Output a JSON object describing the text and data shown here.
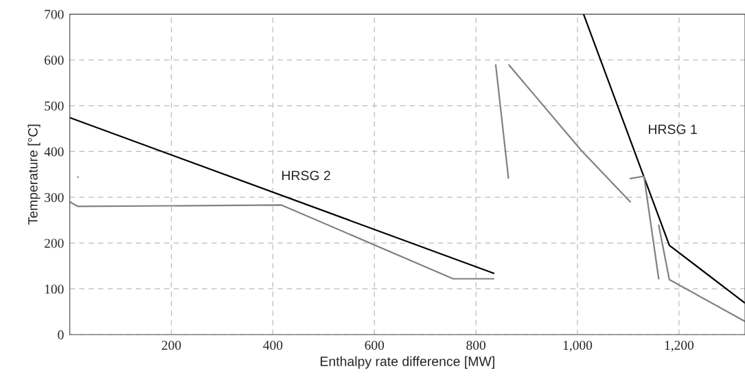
{
  "chart_data": {
    "type": "line",
    "xlabel": "Enthalpy rate difference [MW]",
    "ylabel": "Temperature [°C]",
    "xlim": [
      0,
      1330
    ],
    "ylim": [
      0,
      700
    ],
    "xticks": [
      200,
      400,
      600,
      800,
      {
        "value": 1000,
        "label": "1,000"
      },
      {
        "value": 1200,
        "label": "1,200"
      }
    ],
    "yticks": [
      0,
      100,
      200,
      300,
      400,
      500,
      600,
      700
    ],
    "grid": true,
    "line_style": "solid",
    "marker": "none",
    "series": [
      {
        "color": "#000000",
        "x": [
          0,
          835
        ],
        "values": [
          474,
          134
        ]
      },
      {
        "color": "#000000",
        "x": [
          1012,
          1181,
          1330
        ],
        "values": [
          700,
          195,
          69
        ]
      },
      {
        "color": "#808080",
        "x": [
          0,
          16,
          417,
          755,
          835
        ],
        "values": [
          290,
          280,
          283,
          122,
          122
        ]
      },
      {
        "type": "scatter",
        "color": "#808080",
        "x": [
          16
        ],
        "values": [
          344
        ]
      },
      {
        "color": "#808080",
        "x": [
          839,
          864
        ],
        "values": [
          589,
          342
        ]
      },
      {
        "color": "#808080",
        "x": [
          865,
          1007,
          1104
        ],
        "values": [
          589,
          403,
          290
        ]
      },
      {
        "color": "#808080",
        "x": [
          1104,
          1131,
          1160
        ],
        "values": [
          341,
          346,
          122
        ]
      },
      {
        "color": "#808080",
        "x": [
          1160,
          1181,
          1330
        ],
        "values": [
          239,
          120,
          29
        ]
      }
    ],
    "annotations": [
      "HRSG 2",
      "HRSG 1"
    ]
  }
}
